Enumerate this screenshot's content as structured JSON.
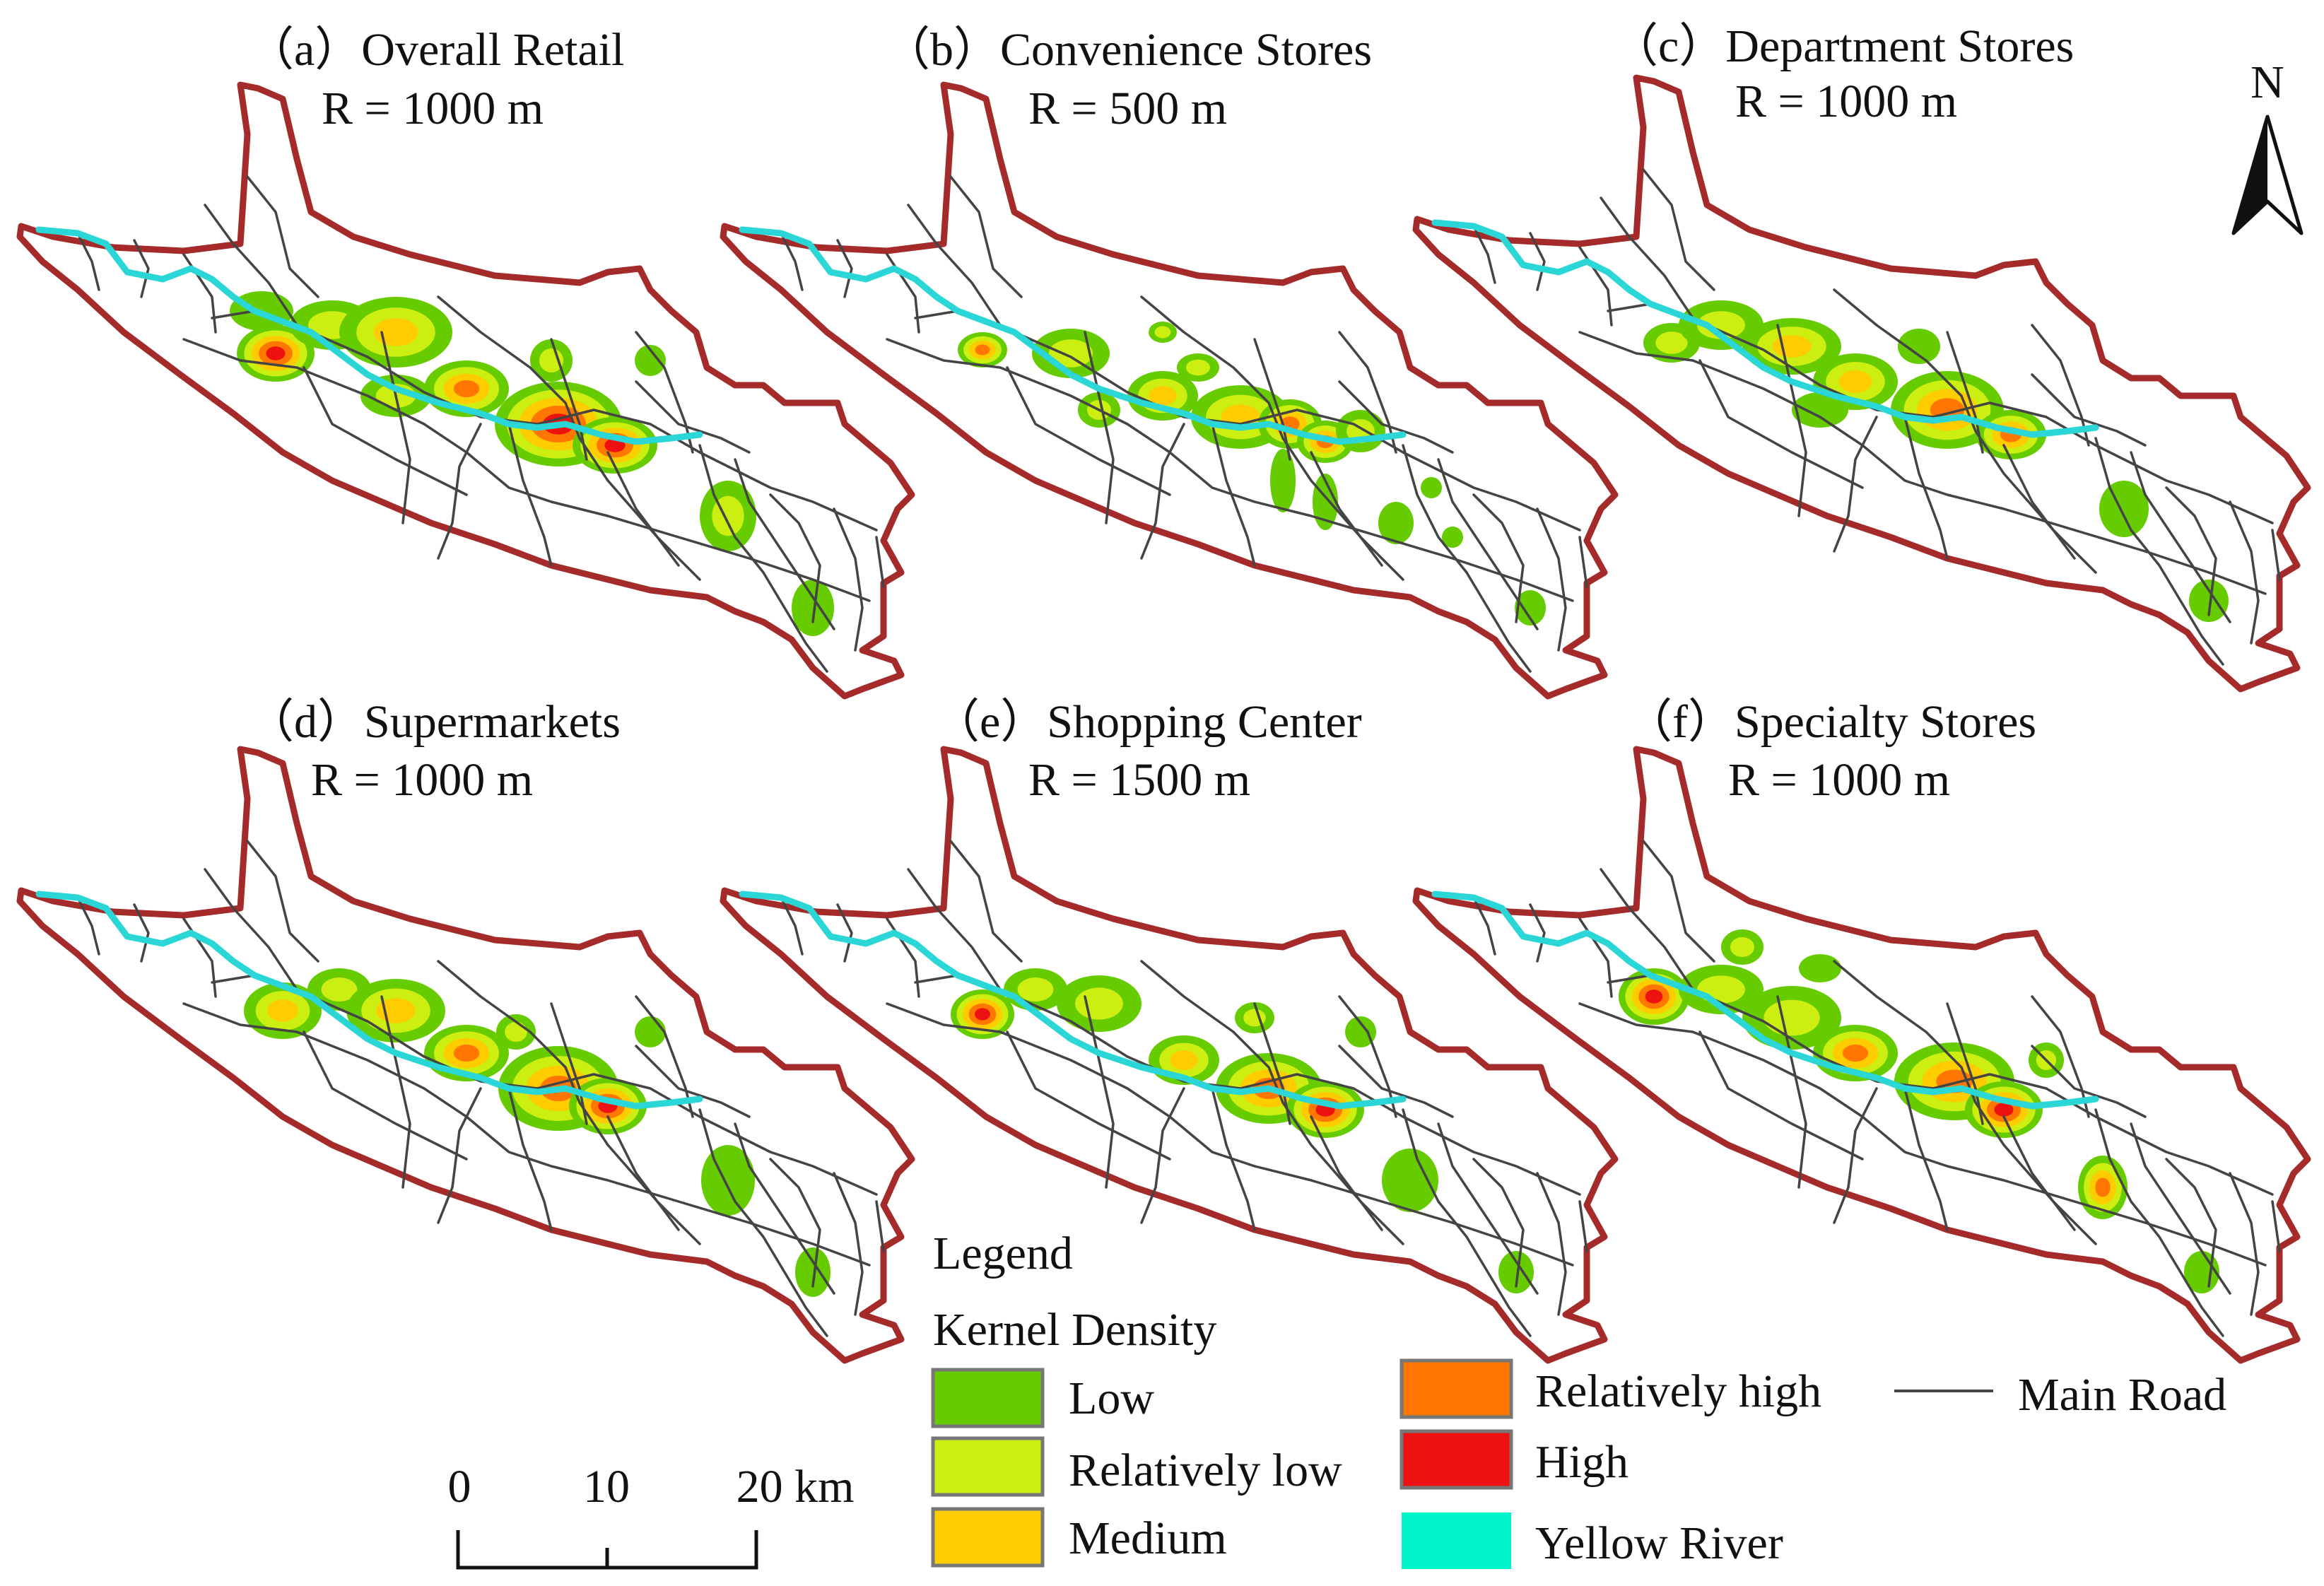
{
  "panels": [
    {
      "id": "a",
      "title": "（a）Overall Retail",
      "radius": "R = 1000 m"
    },
    {
      "id": "b",
      "title": "（b）Convenience Stores",
      "radius": "R = 500 m"
    },
    {
      "id": "c",
      "title": "（c）Department Stores",
      "radius": "R = 1000 m"
    },
    {
      "id": "d",
      "title": "（d）Supermarkets",
      "radius": "R = 1000 m"
    },
    {
      "id": "e",
      "title": "（e）Shopping Center",
      "radius": "R = 1500 m"
    },
    {
      "id": "f",
      "title": "（f）Specialty Stores",
      "radius": "R = 1000 m"
    }
  ],
  "north_arrow": {
    "label": "N"
  },
  "scale_bar": {
    "ticks": [
      "0",
      "10",
      "20 km"
    ]
  },
  "legend": {
    "title": "Legend",
    "subtitle": "Kernel Density",
    "classes": [
      {
        "label": "Low",
        "color": "#66cc00"
      },
      {
        "label": "Relatively low",
        "color": "#ccee11"
      },
      {
        "label": "Medium",
        "color": "#ffcc00"
      },
      {
        "label": "Relatively high",
        "color": "#ff7700"
      },
      {
        "label": "High",
        "color": "#ee1111"
      }
    ],
    "river": {
      "label": "Yellow River",
      "color": "#00f5cc"
    },
    "road": {
      "label": "Main Road",
      "color": "#444444"
    }
  },
  "colors": {
    "boundary": "#a52a2a",
    "river": "#2ad6d6",
    "road": "#444444"
  }
}
